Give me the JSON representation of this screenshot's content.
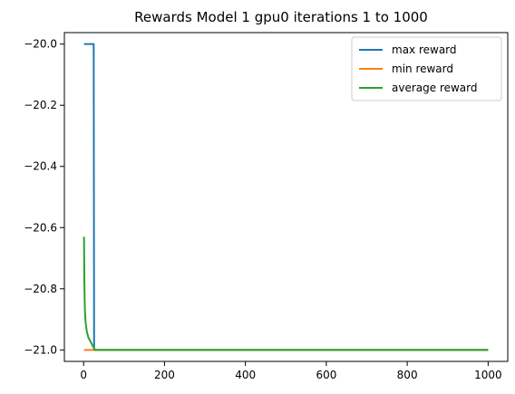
{
  "chart_data": {
    "type": "line",
    "title": "Rewards Model 1 gpu0 iterations 1 to 1000",
    "xlabel": "",
    "ylabel": "",
    "xlim": [
      -47.5,
      1048.5
    ],
    "ylim": [
      -21.0375,
      -19.9625
    ],
    "xticks": [
      0,
      200,
      400,
      600,
      800,
      1000
    ],
    "yticks": [
      -20.0,
      -20.2,
      -20.4,
      -20.6,
      -20.8,
      -21.0
    ],
    "xtick_labels": [
      "0",
      "200",
      "400",
      "600",
      "800",
      "1000"
    ],
    "ytick_labels": [
      "−20.0",
      "−20.2",
      "−20.4",
      "−20.6",
      "−20.8",
      "−21.0"
    ],
    "grid": false,
    "legend_position": "top-right",
    "series": [
      {
        "name": "max reward",
        "color": "#1f77b4",
        "x": [
          1,
          25,
          26,
          27,
          1000
        ],
        "y": [
          -20.0,
          -20.0,
          -21.0,
          -21.0,
          -21.0
        ]
      },
      {
        "name": "min reward",
        "color": "#ff7f0e",
        "x": [
          1,
          1000
        ],
        "y": [
          -21.0,
          -21.0
        ]
      },
      {
        "name": "average reward",
        "color": "#2ca02c",
        "x": [
          1,
          2,
          3,
          4,
          5,
          6,
          7,
          8,
          10,
          12,
          14,
          16,
          18,
          20,
          22,
          24,
          26,
          28,
          1000
        ],
        "y": [
          -20.63,
          -20.78,
          -20.86,
          -20.89,
          -20.91,
          -20.92,
          -20.93,
          -20.94,
          -20.95,
          -20.96,
          -20.965,
          -20.97,
          -20.975,
          -20.98,
          -20.985,
          -20.99,
          -20.995,
          -21.0,
          -21.0
        ]
      }
    ]
  }
}
